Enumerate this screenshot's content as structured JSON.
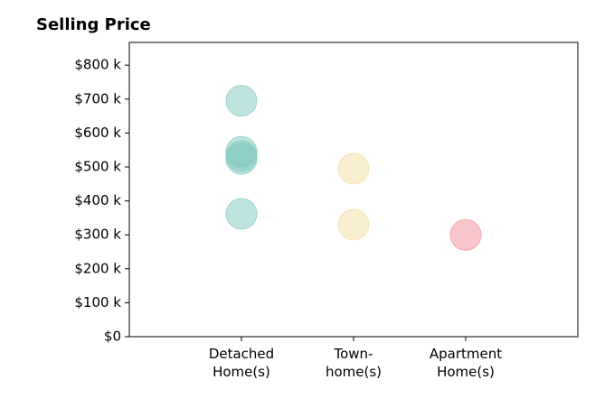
{
  "chart_data": {
    "type": "scatter",
    "title": "Selling Price",
    "categories": [
      "Detached\nHome(s)",
      "Town-\nhome(s)",
      "Apartment\nHome(s)"
    ],
    "values": [
      [
        695,
        545,
        532,
        524,
        362
      ],
      [
        495,
        330
      ],
      [
        300
      ]
    ],
    "colors": [
      "#7fc8be",
      "#f3dca6",
      "#f08b95"
    ],
    "xlim": [
      0,
      4
    ],
    "ylim": [
      0,
      867
    ],
    "yticks": [
      {
        "value": 0,
        "label": "$0"
      },
      {
        "value": 100,
        "label": "$100 k"
      },
      {
        "value": 200,
        "label": "$200 k"
      },
      {
        "value": 300,
        "label": "$300 k"
      },
      {
        "value": 400,
        "label": "$400 k"
      },
      {
        "value": 500,
        "label": "$500 k"
      },
      {
        "value": 600,
        "label": "$600 k"
      },
      {
        "value": 700,
        "label": "$700 k"
      },
      {
        "value": 800,
        "label": "$800 k"
      }
    ]
  }
}
